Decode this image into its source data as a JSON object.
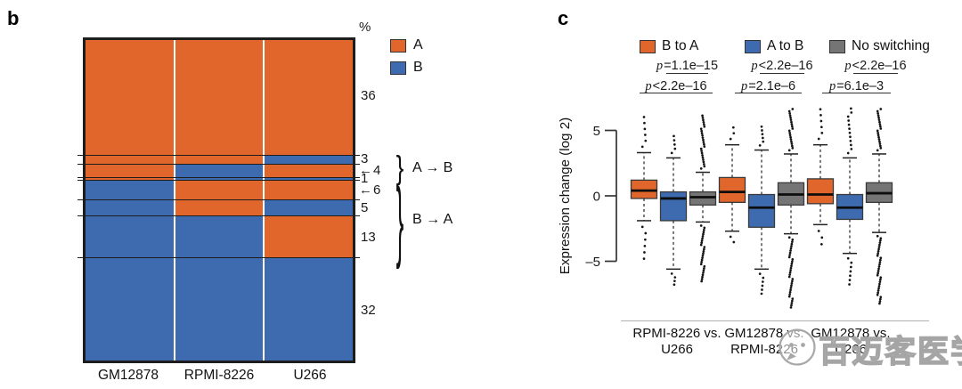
{
  "panel_b": {
    "letter": "b",
    "unit_label": "%"
  },
  "panel_c": {
    "letter": "c"
  },
  "watermark": {
    "text": "百迈客医学",
    "icon": "wechat-bubble-icon"
  },
  "chart_data": [
    {
      "id": "panel-b",
      "type": "heatmap",
      "description": "Mosaic of A/B compartment states per genome fraction across three cell lines",
      "unit": "%",
      "columns": [
        "GM12878",
        "RPMI-8226",
        "U266"
      ],
      "legend": [
        {
          "label": "A",
          "color": "#E1662C"
        },
        {
          "label": "B",
          "color": "#3E6BAF"
        }
      ],
      "colors": {
        "A": "#E1662C",
        "B": "#3E6BAF"
      },
      "rows": [
        {
          "percent": 36,
          "label": "36",
          "states": [
            "A",
            "A",
            "A"
          ],
          "arrow": false
        },
        {
          "percent": 3,
          "label": "3",
          "states": [
            "A",
            "A",
            "B"
          ],
          "arrow": false
        },
        {
          "percent": 4,
          "label": "4",
          "states": [
            "A",
            "B",
            "A"
          ],
          "arrow": true
        },
        {
          "percent": 1,
          "label": "1",
          "states": [
            "A",
            "B",
            "B"
          ],
          "arrow": false
        },
        {
          "percent": 6,
          "label": "6",
          "states": [
            "B",
            "A",
            "A"
          ],
          "arrow": true
        },
        {
          "percent": 5,
          "label": "5",
          "states": [
            "B",
            "A",
            "B"
          ],
          "arrow": false
        },
        {
          "percent": 13,
          "label": "13",
          "states": [
            "B",
            "B",
            "A"
          ],
          "arrow": false
        },
        {
          "percent": 32,
          "label": "32",
          "states": [
            "B",
            "B",
            "B"
          ],
          "arrow": false
        }
      ],
      "groups": [
        {
          "label": "A → B",
          "row_labels": [
            "3",
            "4",
            "1"
          ]
        },
        {
          "label": "B → A",
          "row_labels": [
            "6",
            "5",
            "13"
          ]
        }
      ]
    },
    {
      "id": "panel-c",
      "type": "boxplot",
      "ylabel": "Expression change (log 2)",
      "yticks": [
        5,
        0,
        -5
      ],
      "ytick_labels": [
        "5",
        "0",
        "–5"
      ],
      "ylim": [
        -9.5,
        7.5
      ],
      "grid": false,
      "legend_position": "top",
      "legend": [
        {
          "label": "B to A",
          "color": "#E1662C"
        },
        {
          "label": "A to B",
          "color": "#3E6BAF"
        },
        {
          "label": "No switching",
          "color": "#757575"
        }
      ],
      "groups": [
        {
          "label_line1": "RPMI-8226 vs.",
          "label_line2": "U266",
          "p_upper": "p=1.1e–15",
          "p_lower": "p<2.2e–16",
          "boxes": [
            {
              "series": "B to A",
              "q1": -0.2,
              "median": 0.4,
              "q3": 1.2,
              "whisker_low": -1.9,
              "whisker_high": 3.3,
              "outlier_min": -5.0,
              "outlier_max": 6.2
            },
            {
              "series": "A to B",
              "q1": -1.9,
              "median": -0.2,
              "q3": 0.3,
              "whisker_low": -5.6,
              "whisker_high": 2.9,
              "outlier_min": -6.9,
              "outlier_max": 4.7
            },
            {
              "series": "No switching",
              "q1": -0.7,
              "median": -0.1,
              "q3": 0.3,
              "whisker_low": -2.0,
              "whisker_high": 1.8,
              "outlier_min": -6.6,
              "outlier_max": 6.2
            }
          ]
        },
        {
          "label_line1": "GM12878 vs.",
          "label_line2": "RPMI-8226",
          "p_upper": "p<2.2e–16",
          "p_lower": "p=2.1e–6",
          "boxes": [
            {
              "series": "B to A",
              "q1": -0.5,
              "median": 0.3,
              "q3": 1.4,
              "whisker_low": -2.7,
              "whisker_high": 3.9,
              "outlier_min": -3.7,
              "outlier_max": 5.4
            },
            {
              "series": "A to B",
              "q1": -2.4,
              "median": -0.9,
              "q3": 0.1,
              "whisker_low": -5.6,
              "whisker_high": 3.5,
              "outlier_min": -7.6,
              "outlier_max": 5.4
            },
            {
              "series": "No switching",
              "q1": -0.7,
              "median": 0.1,
              "q3": 1.0,
              "whisker_low": -2.9,
              "whisker_high": 3.2,
              "outlier_min": -8.6,
              "outlier_max": 6.7
            }
          ]
        },
        {
          "label_line1": "GM12878 vs.",
          "label_line2": "U266",
          "p_upper": "p<2.2e–16",
          "p_lower": "p=6.1e–3",
          "boxes": [
            {
              "series": "B to A",
              "q1": -0.6,
              "median": 0.1,
              "q3": 1.3,
              "whisker_low": -2.2,
              "whisker_high": 3.9,
              "outlier_min": -3.9,
              "outlier_max": 6.8
            },
            {
              "series": "A to B",
              "q1": -1.8,
              "median": -0.9,
              "q3": 0.1,
              "whisker_low": -4.4,
              "whisker_high": 2.9,
              "outlier_min": -6.9,
              "outlier_max": 6.8
            },
            {
              "series": "No switching",
              "q1": -0.5,
              "median": 0.2,
              "q3": 1.0,
              "whisker_low": -2.8,
              "whisker_high": 3.2,
              "outlier_min": -8.3,
              "outlier_max": 6.7
            }
          ]
        }
      ]
    }
  ]
}
